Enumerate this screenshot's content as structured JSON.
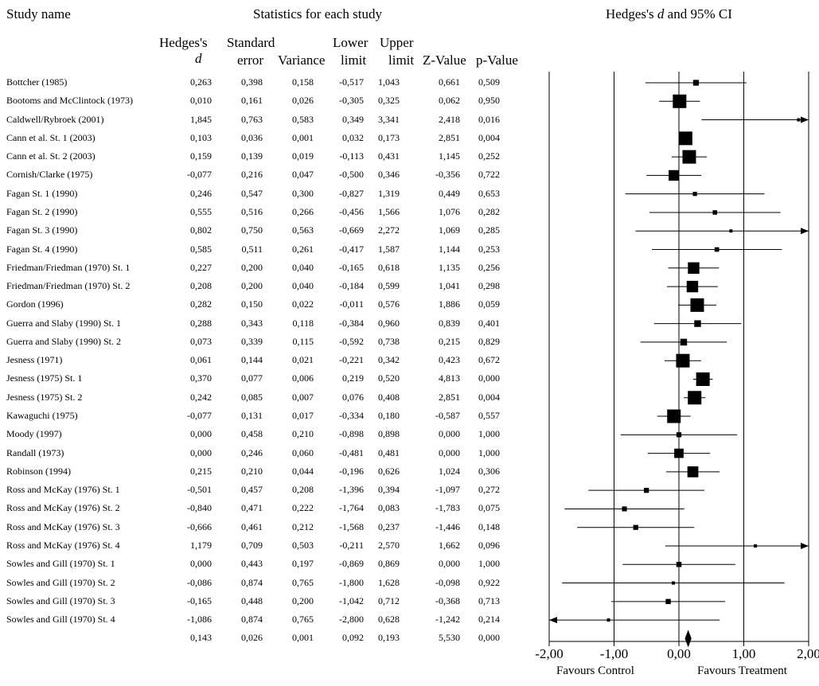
{
  "header": {
    "study_name": "Study name",
    "statistics": "Statistics for each study",
    "plot_title_prefix": "Hedges's ",
    "plot_title_var": "d",
    "plot_title_suffix": " and 95% CI"
  },
  "columns": {
    "d_line1": "Hedges's",
    "d_line2": "d",
    "se_line1": "Standard",
    "se_line2": "error",
    "var_line2": "Variance",
    "lower_line1": "Lower",
    "lower_line2": "limit",
    "upper_line1": "Upper",
    "upper_line2": "limit",
    "z_line2": "Z-Value",
    "p_line2": "p-Value"
  },
  "footer": {
    "favours_control": "Favours Control",
    "favours_treatment": "Favours Treatment"
  },
  "chart_data": {
    "type": "forest",
    "xlim": [
      -2,
      2
    ],
    "x_ticks": [
      "-2,00",
      "-1,00",
      "0,00",
      "1,00",
      "2,00"
    ],
    "x_tick_values": [
      -2,
      -1,
      0,
      1,
      2
    ],
    "studies": [
      {
        "name": "Bottcher (1985)",
        "d": "0,263",
        "se": "0,398",
        "var": "0,158",
        "lower": "-0,517",
        "upper": "1,043",
        "z": "0,661",
        "p": "0,509",
        "dv": 0.263,
        "lv": -0.517,
        "uv": 1.043,
        "wv": 0.158
      },
      {
        "name": "Bootoms and McClintock (1973)",
        "d": "0,010",
        "se": "0,161",
        "var": "0,026",
        "lower": "-0,305",
        "upper": "0,325",
        "z": "0,062",
        "p": "0,950",
        "dv": 0.01,
        "lv": -0.305,
        "uv": 0.325,
        "wv": 0.026
      },
      {
        "name": "Caldwell/Rybroek (2001)",
        "d": "1,845",
        "se": "0,763",
        "var": "0,583",
        "lower": "0,349",
        "upper": "3,341",
        "z": "2,418",
        "p": "0,016",
        "dv": 1.845,
        "lv": 0.349,
        "uv": 3.341,
        "wv": 0.583
      },
      {
        "name": "Cann et al. St. 1 (2003)",
        "d": "0,103",
        "se": "0,036",
        "var": "0,001",
        "lower": "0,032",
        "upper": "0,173",
        "z": "2,851",
        "p": "0,004",
        "dv": 0.103,
        "lv": 0.032,
        "uv": 0.173,
        "wv": 0.001
      },
      {
        "name": "Cann et al. St. 2 (2003)",
        "d": "0,159",
        "se": "0,139",
        "var": "0,019",
        "lower": "-0,113",
        "upper": "0,431",
        "z": "1,145",
        "p": "0,252",
        "dv": 0.159,
        "lv": -0.113,
        "uv": 0.431,
        "wv": 0.019
      },
      {
        "name": "Cornish/Clarke (1975)",
        "d": "-0,077",
        "se": "0,216",
        "var": "0,047",
        "lower": "-0,500",
        "upper": "0,346",
        "z": "-0,356",
        "p": "0,722",
        "dv": -0.077,
        "lv": -0.5,
        "uv": 0.346,
        "wv": 0.047
      },
      {
        "name": "Fagan St. 1 (1990)",
        "d": "0,246",
        "se": "0,547",
        "var": "0,300",
        "lower": "-0,827",
        "upper": "1,319",
        "z": "0,449",
        "p": "0,653",
        "dv": 0.246,
        "lv": -0.827,
        "uv": 1.319,
        "wv": 0.3
      },
      {
        "name": "Fagan St. 2 (1990)",
        "d": "0,555",
        "se": "0,516",
        "var": "0,266",
        "lower": "-0,456",
        "upper": "1,566",
        "z": "1,076",
        "p": "0,282",
        "dv": 0.555,
        "lv": -0.456,
        "uv": 1.566,
        "wv": 0.266
      },
      {
        "name": "Fagan St. 3 (1990)",
        "d": "0,802",
        "se": "0,750",
        "var": "0,563",
        "lower": "-0,669",
        "upper": "2,272",
        "z": "1,069",
        "p": "0,285",
        "dv": 0.802,
        "lv": -0.669,
        "uv": 2.272,
        "wv": 0.563
      },
      {
        "name": "Fagan St. 4 (1990)",
        "d": "0,585",
        "se": "0,511",
        "var": "0,261",
        "lower": "-0,417",
        "upper": "1,587",
        "z": "1,144",
        "p": "0,253",
        "dv": 0.585,
        "lv": -0.417,
        "uv": 1.587,
        "wv": 0.261
      },
      {
        "name": "Friedman/Friedman (1970) St. 1",
        "d": "0,227",
        "se": "0,200",
        "var": "0,040",
        "lower": "-0,165",
        "upper": "0,618",
        "z": "1,135",
        "p": "0,256",
        "dv": 0.227,
        "lv": -0.165,
        "uv": 0.618,
        "wv": 0.04
      },
      {
        "name": "Friedman/Friedman (1970) St. 2",
        "d": "0,208",
        "se": "0,200",
        "var": "0,040",
        "lower": "-0,184",
        "upper": "0,599",
        "z": "1,041",
        "p": "0,298",
        "dv": 0.208,
        "lv": -0.184,
        "uv": 0.599,
        "wv": 0.04
      },
      {
        "name": "Gordon (1996)",
        "d": "0,282",
        "se": "0,150",
        "var": "0,022",
        "lower": "-0,011",
        "upper": "0,576",
        "z": "1,886",
        "p": "0,059",
        "dv": 0.282,
        "lv": -0.011,
        "uv": 0.576,
        "wv": 0.022
      },
      {
        "name": "Guerra and Slaby (1990) St. 1",
        "d": "0,288",
        "se": "0,343",
        "var": "0,118",
        "lower": "-0,384",
        "upper": "0,960",
        "z": "0,839",
        "p": "0,401",
        "dv": 0.288,
        "lv": -0.384,
        "uv": 0.96,
        "wv": 0.118
      },
      {
        "name": "Guerra and Slaby (1990) St. 2",
        "d": "0,073",
        "se": "0,339",
        "var": "0,115",
        "lower": "-0,592",
        "upper": "0,738",
        "z": "0,215",
        "p": "0,829",
        "dv": 0.073,
        "lv": -0.592,
        "uv": 0.738,
        "wv": 0.115
      },
      {
        "name": "Jesness (1971)",
        "d": "0,061",
        "se": "0,144",
        "var": "0,021",
        "lower": "-0,221",
        "upper": "0,342",
        "z": "0,423",
        "p": "0,672",
        "dv": 0.061,
        "lv": -0.221,
        "uv": 0.342,
        "wv": 0.021
      },
      {
        "name": "Jesness (1975) St. 1",
        "d": "0,370",
        "se": "0,077",
        "var": "0,006",
        "lower": "0,219",
        "upper": "0,520",
        "z": "4,813",
        "p": "0,000",
        "dv": 0.37,
        "lv": 0.219,
        "uv": 0.52,
        "wv": 0.006
      },
      {
        "name": "Jesness (1975) St. 2",
        "d": "0,242",
        "se": "0,085",
        "var": "0,007",
        "lower": "0,076",
        "upper": "0,408",
        "z": "2,851",
        "p": "0,004",
        "dv": 0.242,
        "lv": 0.076,
        "uv": 0.408,
        "wv": 0.007
      },
      {
        "name": "Kawaguchi (1975)",
        "d": "-0,077",
        "se": "0,131",
        "var": "0,017",
        "lower": "-0,334",
        "upper": "0,180",
        "z": "-0,587",
        "p": "0,557",
        "dv": -0.077,
        "lv": -0.334,
        "uv": 0.18,
        "wv": 0.017
      },
      {
        "name": "Moody (1997)",
        "d": "0,000",
        "se": "0,458",
        "var": "0,210",
        "lower": "-0,898",
        "upper": "0,898",
        "z": "0,000",
        "p": "1,000",
        "dv": 0.0,
        "lv": -0.898,
        "uv": 0.898,
        "wv": 0.21
      },
      {
        "name": "Randall (1973)",
        "d": "0,000",
        "se": "0,246",
        "var": "0,060",
        "lower": "-0,481",
        "upper": "0,481",
        "z": "0,000",
        "p": "1,000",
        "dv": 0.0,
        "lv": -0.481,
        "uv": 0.481,
        "wv": 0.06
      },
      {
        "name": "Robinson (1994)",
        "d": "0,215",
        "se": "0,210",
        "var": "0,044",
        "lower": "-0,196",
        "upper": "0,626",
        "z": "1,024",
        "p": "0,306",
        "dv": 0.215,
        "lv": -0.196,
        "uv": 0.626,
        "wv": 0.044
      },
      {
        "name": "Ross and McKay (1976) St. 1",
        "d": "-0,501",
        "se": "0,457",
        "var": "0,208",
        "lower": "-1,396",
        "upper": "0,394",
        "z": "-1,097",
        "p": "0,272",
        "dv": -0.501,
        "lv": -1.396,
        "uv": 0.394,
        "wv": 0.208
      },
      {
        "name": "Ross and McKay (1976) St. 2",
        "d": "-0,840",
        "se": "0,471",
        "var": "0,222",
        "lower": "-1,764",
        "upper": "0,083",
        "z": "-1,783",
        "p": "0,075",
        "dv": -0.84,
        "lv": -1.764,
        "uv": 0.083,
        "wv": 0.222
      },
      {
        "name": "Ross and McKay (1976) St. 3",
        "d": "-0,666",
        "se": "0,461",
        "var": "0,212",
        "lower": "-1,568",
        "upper": "0,237",
        "z": "-1,446",
        "p": "0,148",
        "dv": -0.666,
        "lv": -1.568,
        "uv": 0.237,
        "wv": 0.212
      },
      {
        "name": "Ross and McKay (1976) St. 4",
        "d": "1,179",
        "se": "0,709",
        "var": "0,503",
        "lower": "-0,211",
        "upper": "2,570",
        "z": "1,662",
        "p": "0,096",
        "dv": 1.179,
        "lv": -0.211,
        "uv": 2.57,
        "wv": 0.503
      },
      {
        "name": "Sowles and Gill (1970) St. 1",
        "d": "0,000",
        "se": "0,443",
        "var": "0,197",
        "lower": "-0,869",
        "upper": "0,869",
        "z": "0,000",
        "p": "1,000",
        "dv": 0.0,
        "lv": -0.869,
        "uv": 0.869,
        "wv": 0.197
      },
      {
        "name": "Sowles and Gill (1970) St. 2",
        "d": "-0,086",
        "se": "0,874",
        "var": "0,765",
        "lower": "-1,800",
        "upper": "1,628",
        "z": "-0,098",
        "p": "0,922",
        "dv": -0.086,
        "lv": -1.8,
        "uv": 1.628,
        "wv": 0.765
      },
      {
        "name": "Sowles and Gill (1970) St. 3",
        "d": "-0,165",
        "se": "0,448",
        "var": "0,200",
        "lower": "-1,042",
        "upper": "0,712",
        "z": "-0,368",
        "p": "0,713",
        "dv": -0.165,
        "lv": -1.042,
        "uv": 0.712,
        "wv": 0.2
      },
      {
        "name": "Sowles and Gill (1970) St. 4",
        "d": "-1,086",
        "se": "0,874",
        "var": "0,765",
        "lower": "-2,800",
        "upper": "0,628",
        "z": "-1,242",
        "p": "0,214",
        "dv": -1.086,
        "lv": -2.8,
        "uv": 0.628,
        "wv": 0.765
      }
    ],
    "summary": {
      "name": "",
      "d": "0,143",
      "se": "0,026",
      "var": "0,001",
      "lower": "0,092",
      "upper": "0,193",
      "z": "5,530",
      "p": "0,000",
      "dv": 0.143,
      "lv": 0.092,
      "uv": 0.193
    }
  }
}
